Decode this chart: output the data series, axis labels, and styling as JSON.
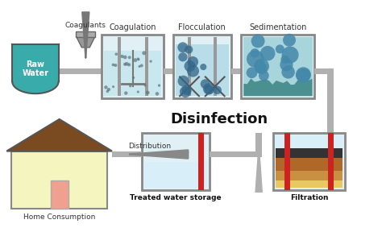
{
  "background_color": "#ffffff",
  "fig_width": 4.74,
  "fig_height": 2.83,
  "dpi": 100,
  "stages_top": [
    "Coagulation",
    "Flocculation",
    "Sedimentation"
  ],
  "stages_bottom_labels": [
    "Treated water storage",
    "Filtration"
  ],
  "label_raw_water": "Raw\nWater",
  "label_coagulants": "Coagulants",
  "label_disinfection": "Disinfection",
  "label_distribution": "Distribution",
  "label_home": "Home Consumption",
  "pipe_color": "#b0b0b0",
  "tank_border_color": "#888888",
  "water_color_coag": "#c8e8ee",
  "water_color_floc": "#b8dce8",
  "water_color_sed": "#a8d4dc",
  "water_color_storage": "#d8eef8",
  "raw_water_color": "#3aabab",
  "house_wall_color": "#f5f5c0",
  "house_roof_color": "#7a4a20",
  "house_door_color": "#f0a090",
  "sediment_color": "#4a9090",
  "filter_black": "#333333",
  "filter_brown": "#b06828",
  "filter_tan": "#c89040",
  "filter_sand": "#e8c860",
  "red_bar_color": "#cc2222",
  "arrow_color": "#888888",
  "dot_color_coag": "#607080",
  "dot_color_floc": "#336688",
  "dot_color_sed": "#4488aa",
  "text_color": "#333333",
  "pipe_lw": 8
}
